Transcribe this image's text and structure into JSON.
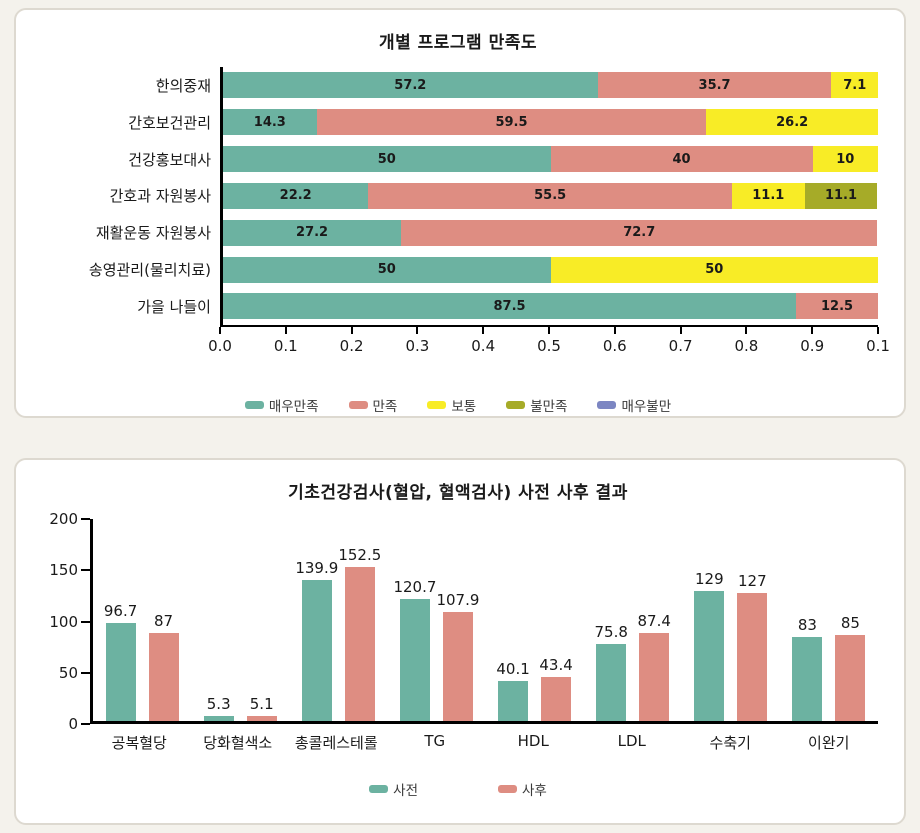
{
  "page": {
    "background": "#f4f2ec",
    "panel_border": "#ddd9d0"
  },
  "colors": {
    "very_satisfied": "#6cb2a1",
    "satisfied": "#de8d82",
    "neutral": "#f8ec26",
    "dissatisfied": "#a6ab28",
    "very_dissatisfied": "#7c86c2",
    "pre": "#6cb2a1",
    "post": "#de8d82",
    "axis": "#000000",
    "text": "#1a1a1a"
  },
  "chart_data": [
    {
      "type": "bar",
      "orientation": "horizontal",
      "stacked": true,
      "title": "개별 프로그램 만족도",
      "categories": [
        "한의중재",
        "간호보건관리",
        "건강홍보대사",
        "간호과 자원봉사",
        "재활운동 자원봉사",
        "송영관리(물리치료)",
        "가을 나들이"
      ],
      "series": [
        {
          "name": "매우만족",
          "color": "#6cb2a1",
          "values": [
            57.2,
            14.3,
            50,
            22.2,
            27.2,
            50,
            87.5
          ]
        },
        {
          "name": "만족",
          "color": "#de8d82",
          "values": [
            35.7,
            59.5,
            40,
            55.5,
            72.7,
            0,
            12.5
          ]
        },
        {
          "name": "보통",
          "color": "#f8ec26",
          "values": [
            7.1,
            26.2,
            10,
            11.1,
            0,
            50,
            0
          ]
        },
        {
          "name": "불만족",
          "color": "#a6ab28",
          "values": [
            0,
            0,
            0,
            11.1,
            0,
            0,
            0
          ]
        },
        {
          "name": "매우불만",
          "color": "#7c86c2",
          "values": [
            0,
            0,
            0,
            0,
            0,
            0,
            0
          ]
        }
      ],
      "xlim": [
        0,
        100
      ],
      "x_tick_labels": [
        "0.0",
        "0.1",
        "0.2",
        "0.3",
        "0.4",
        "0.5",
        "0.6",
        "0.7",
        "0.8",
        "0.9",
        "0.1"
      ],
      "legend_position": "bottom",
      "grid": false
    },
    {
      "type": "bar",
      "orientation": "vertical",
      "grouped": true,
      "title": "기초건강검사(혈압, 혈액검사) 사전 사후 결과",
      "categories": [
        "공복혈당",
        "당화혈색소",
        "총콜레스테롤",
        "TG",
        "HDL",
        "LDL",
        "수축기",
        "이완기"
      ],
      "series": [
        {
          "name": "사전",
          "color": "#6cb2a1",
          "values": [
            96.7,
            5.3,
            139.9,
            120.7,
            40.1,
            75.8,
            129,
            83
          ]
        },
        {
          "name": "사후",
          "color": "#de8d82",
          "values": [
            87,
            5.1,
            152.5,
            107.9,
            43.4,
            87.4,
            127,
            85
          ]
        }
      ],
      "ylim": [
        0,
        200
      ],
      "y_ticks": [
        0,
        50,
        100,
        150,
        200
      ],
      "legend_position": "bottom",
      "grid": false
    }
  ]
}
